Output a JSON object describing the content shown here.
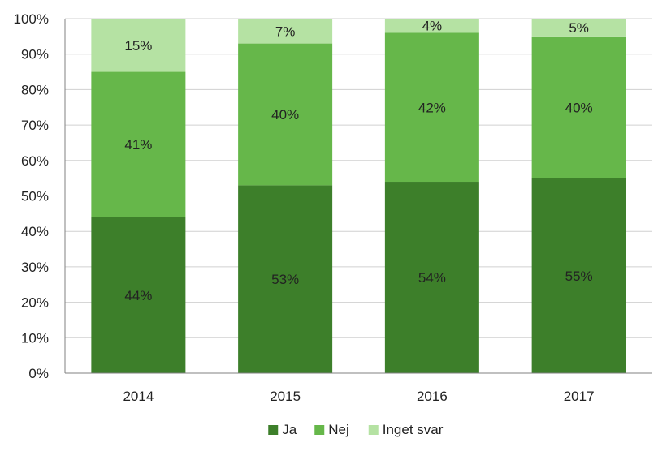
{
  "chart_data": {
    "type": "bar",
    "stacked": true,
    "categories": [
      "2014",
      "2015",
      "2016",
      "2017"
    ],
    "series": [
      {
        "name": "Ja",
        "values": [
          44,
          53,
          54,
          55
        ],
        "color": "#3d7f2a"
      },
      {
        "name": "Nej",
        "values": [
          41,
          40,
          42,
          40
        ],
        "color": "#66b74a"
      },
      {
        "name": "Inget svar",
        "values": [
          15,
          7,
          4,
          5
        ],
        "color": "#b5e2a3"
      }
    ],
    "data_labels": [
      [
        "44%",
        "53%",
        "54%",
        "55%"
      ],
      [
        "41%",
        "40%",
        "42%",
        "40%"
      ],
      [
        "15%",
        "7%",
        "4%",
        "5%"
      ]
    ],
    "y_ticks": [
      "0%",
      "10%",
      "20%",
      "30%",
      "40%",
      "50%",
      "60%",
      "70%",
      "80%",
      "90%",
      "100%"
    ],
    "ylim": [
      0,
      100
    ],
    "grid": true,
    "legend_position": "bottom",
    "title": "",
    "xlabel": "",
    "ylabel": ""
  }
}
